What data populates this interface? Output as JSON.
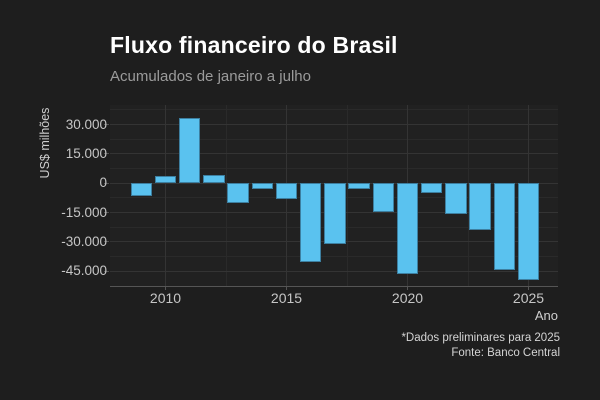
{
  "chart_data": {
    "type": "bar",
    "title": "Fluxo financeiro do Brasil",
    "subtitle": "Acumulados de janeiro a julho",
    "xlabel": "Ano",
    "ylabel": "US$ milhões",
    "caption": [
      "*Dados preliminares para 2025",
      "Fonte: Banco Central"
    ],
    "categories": [
      "2009",
      "2010",
      "2011",
      "2012",
      "2013",
      "2014",
      "2015",
      "2016",
      "2017",
      "2018",
      "2019",
      "2020",
      "2021",
      "2022",
      "2023",
      "2024",
      "2025"
    ],
    "values": [
      -6500,
      3500,
      33500,
      4000,
      -10000,
      -3000,
      -8000,
      -40000,
      -31000,
      -3000,
      -14500,
      -46500,
      -5000,
      -15500,
      -24000,
      -44500,
      -49500
    ],
    "x_ticks": [
      2010,
      2015,
      2020,
      2025
    ],
    "x_minor_ticks": [
      2012.5,
      2017.5,
      2022.5
    ],
    "y_ticks": [
      30000,
      15000,
      0,
      -15000,
      -30000,
      -45000
    ],
    "y_tick_labels": [
      "30.000",
      "15.000",
      "0",
      "-15.000",
      "-30.000",
      "-45.000"
    ],
    "y_minor_ticks": [
      37500,
      22500,
      7500,
      -7500,
      -22500,
      -37500
    ],
    "ylim": [
      -52500,
      40000
    ],
    "grid": true,
    "legend": "none",
    "colors": {
      "background": "#1e1e1e",
      "bar_fill": "#5ac2ef",
      "bar_border": "#3d7fa0",
      "grid_major": "#343434",
      "grid_minor": "#2a2a2a",
      "axis_line": "#555555",
      "tick_label": "#c6c6c6",
      "title": "#ffffff",
      "subtitle": "#9b9b9b"
    }
  }
}
